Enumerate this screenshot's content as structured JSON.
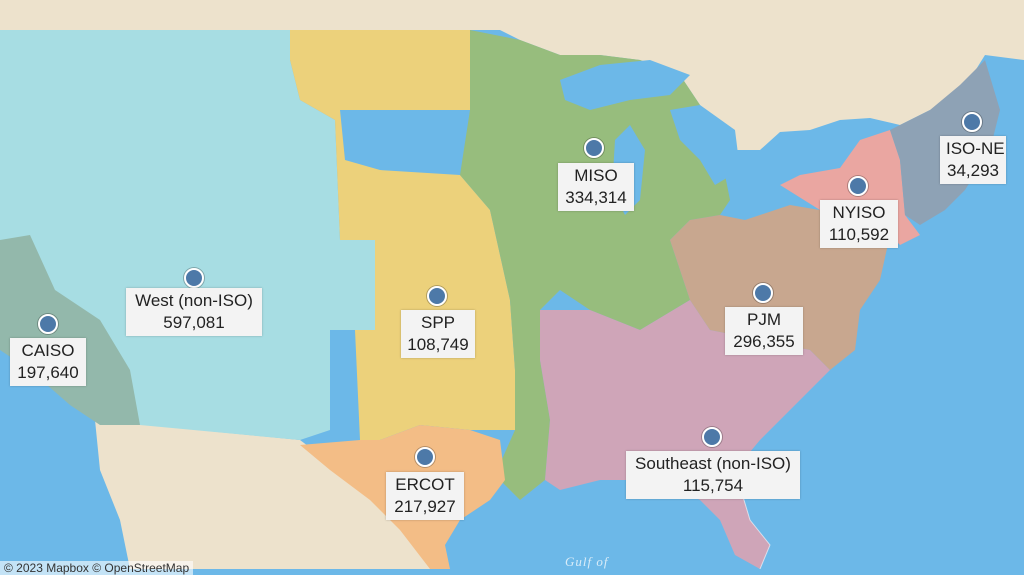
{
  "map": {
    "water_label": "Gulf of",
    "attribution": "© 2023 Mapbox © OpenStreetMap",
    "colors": {
      "water": "#6cb8e8",
      "land": "#ede2cc",
      "West": "#a7dde3",
      "CAISO": "#93b8ab",
      "SPP": "#ecd17b",
      "MISO": "#97bd7d",
      "ERCOT": "#f3bd86",
      "PJM": "#c8a78f",
      "Southeast": "#cfa5b8",
      "NYISO": "#eaa6a1",
      "ISO-NE": "#8ea2b5",
      "marker": "#4d79a8"
    }
  },
  "regions": [
    {
      "id": "west",
      "name": "West (non-ISO)",
      "value": "597,081"
    },
    {
      "id": "caiso",
      "name": "CAISO",
      "value": "197,640"
    },
    {
      "id": "spp",
      "name": "SPP",
      "value": "108,749"
    },
    {
      "id": "miso",
      "name": "MISO",
      "value": "334,314"
    },
    {
      "id": "ercot",
      "name": "ERCOT",
      "value": "217,927"
    },
    {
      "id": "pjm",
      "name": "PJM",
      "value": "296,355"
    },
    {
      "id": "southeast",
      "name": "Southeast (non-ISO)",
      "value": "115,754"
    },
    {
      "id": "nyiso",
      "name": "NYISO",
      "value": "110,592"
    },
    {
      "id": "isone",
      "name": "ISO-NE",
      "value": "34,293"
    }
  ]
}
